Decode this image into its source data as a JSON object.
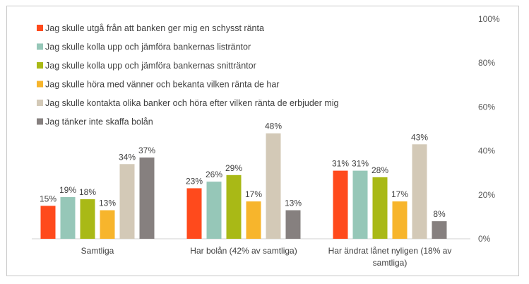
{
  "chart_data": {
    "type": "bar",
    "categories": [
      [
        "Samtliga"
      ],
      [
        "Har bolån (42% av samtliga)"
      ],
      [
        "Har ändrat lånet nyligen (18% av",
        "samtliga)"
      ]
    ],
    "series": [
      {
        "name": "Jag skulle utgå från att banken ger mig en schysst ränta",
        "color": "#ff4a1c",
        "values": [
          15,
          23,
          31
        ]
      },
      {
        "name": "Jag skulle kolla upp och jämföra bankernas listräntor",
        "color": "#96c7b8",
        "values": [
          19,
          26,
          31
        ]
      },
      {
        "name": "Jag skulle kolla upp och jämföra bankernas snitträntor",
        "color": "#a9b916",
        "values": [
          18,
          29,
          28
        ]
      },
      {
        "name": "Jag skulle höra med vänner och bekanta vilken ränta de har",
        "color": "#f7b52c",
        "values": [
          13,
          17,
          17
        ]
      },
      {
        "name": "Jag skulle kontakta olika banker och höra efter vilken ränta de erbjuder mig",
        "color": "#d3c9b7",
        "values": [
          34,
          48,
          43
        ]
      },
      {
        "name": "Jag tänker inte skaffa bolån",
        "color": "#86807f",
        "values": [
          37,
          13,
          8
        ]
      }
    ],
    "value_suffix": "%",
    "yaxis": {
      "position": "right",
      "ticks": [
        0,
        20,
        40,
        60,
        80,
        100
      ],
      "tick_labels": [
        "0%",
        "20%",
        "40%",
        "60%",
        "80%",
        "100%"
      ]
    },
    "ylim": [
      0,
      100
    ],
    "grid": false,
    "legend": "top-left"
  }
}
